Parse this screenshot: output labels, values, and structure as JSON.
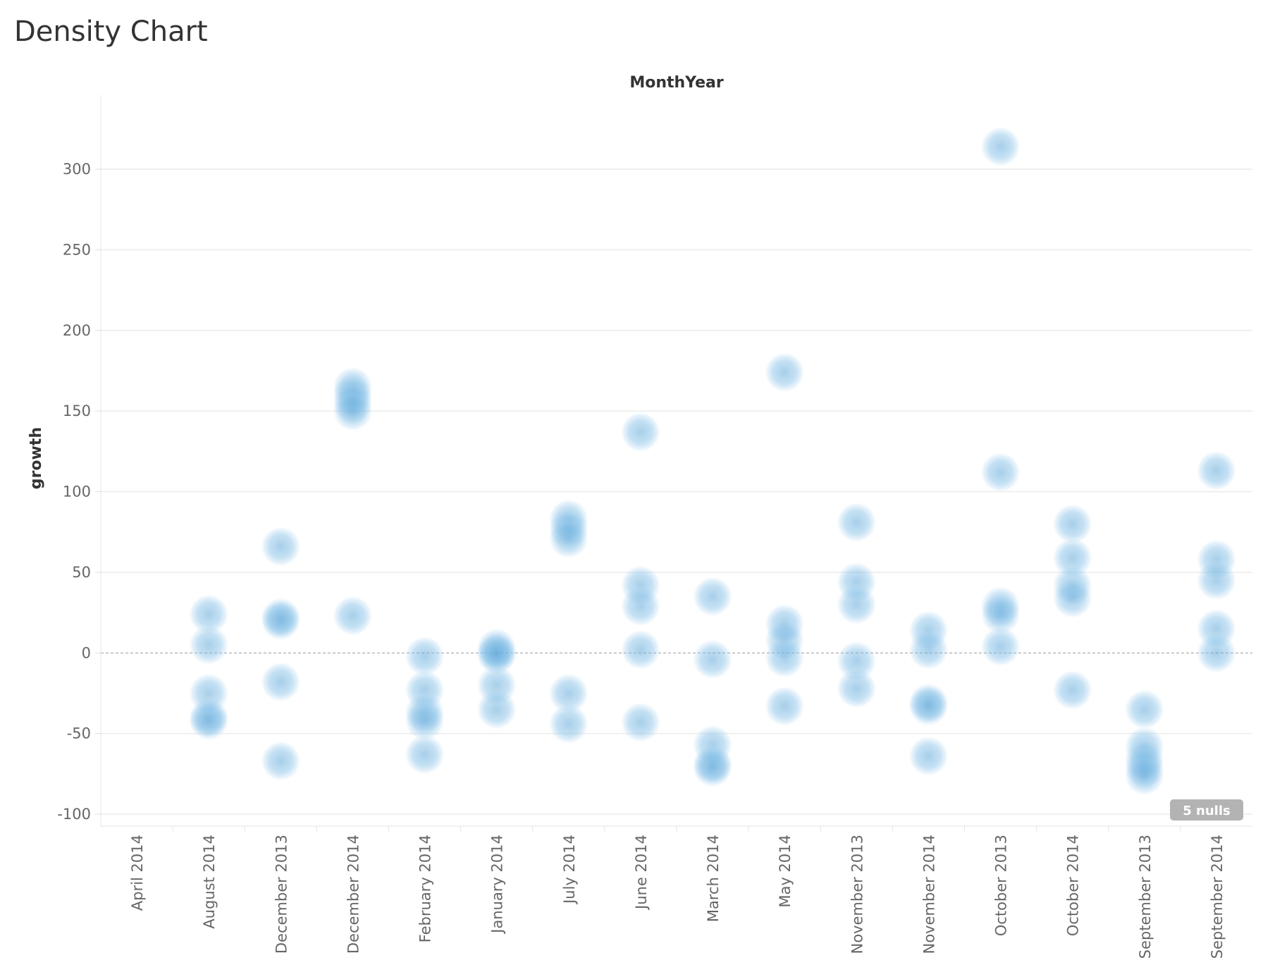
{
  "title": "Density Chart",
  "null_badge": "5 nulls",
  "colors": {
    "point": "#7fbde6",
    "point_dark": "#3a87c2",
    "grid": "#ececec",
    "zero_line": "#999999"
  },
  "chart_data": {
    "type": "scatter",
    "subtype": "density",
    "xlabel": "MonthYear",
    "ylabel": "growth",
    "ylim": [
      -100,
      300
    ],
    "yticks": [
      -100,
      -50,
      0,
      50,
      100,
      150,
      200,
      250,
      300
    ],
    "grid": true,
    "categories": [
      "April 2014",
      "August 2014",
      "December 2013",
      "December 2014",
      "February 2014",
      "January 2014",
      "July 2014",
      "June 2014",
      "March 2014",
      "May 2014",
      "November 2013",
      "November 2014",
      "October 2013",
      "October 2014",
      "September 2013",
      "September 2014"
    ],
    "points": [
      {
        "x": "August 2014",
        "y": 24
      },
      {
        "x": "August 2014",
        "y": 5
      },
      {
        "x": "August 2014",
        "y": -25
      },
      {
        "x": "August 2014",
        "y": -40
      },
      {
        "x": "August 2014",
        "y": -42
      },
      {
        "x": "December 2013",
        "y": 66
      },
      {
        "x": "December 2013",
        "y": 22
      },
      {
        "x": "December 2013",
        "y": 20
      },
      {
        "x": "December 2013",
        "y": -18
      },
      {
        "x": "December 2013",
        "y": -67
      },
      {
        "x": "December 2014",
        "y": 165
      },
      {
        "x": "December 2014",
        "y": 160
      },
      {
        "x": "December 2014",
        "y": 155
      },
      {
        "x": "December 2014",
        "y": 150
      },
      {
        "x": "December 2014",
        "y": 23
      },
      {
        "x": "February 2014",
        "y": -2
      },
      {
        "x": "February 2014",
        "y": -23
      },
      {
        "x": "February 2014",
        "y": -37
      },
      {
        "x": "February 2014",
        "y": -42
      },
      {
        "x": "February 2014",
        "y": -63
      },
      {
        "x": "January 2014",
        "y": 3
      },
      {
        "x": "January 2014",
        "y": 0
      },
      {
        "x": "January 2014",
        "y": -1
      },
      {
        "x": "January 2014",
        "y": -20
      },
      {
        "x": "January 2014",
        "y": -35
      },
      {
        "x": "July 2014",
        "y": 83
      },
      {
        "x": "July 2014",
        "y": 77
      },
      {
        "x": "July 2014",
        "y": 71
      },
      {
        "x": "July 2014",
        "y": -25
      },
      {
        "x": "July 2014",
        "y": -44
      },
      {
        "x": "June 2014",
        "y": 137
      },
      {
        "x": "June 2014",
        "y": 42
      },
      {
        "x": "June 2014",
        "y": 29
      },
      {
        "x": "June 2014",
        "y": 2
      },
      {
        "x": "June 2014",
        "y": -43
      },
      {
        "x": "March 2014",
        "y": 35
      },
      {
        "x": "March 2014",
        "y": -4
      },
      {
        "x": "March 2014",
        "y": -57
      },
      {
        "x": "March 2014",
        "y": -69
      },
      {
        "x": "March 2014",
        "y": -71
      },
      {
        "x": "May 2014",
        "y": 174
      },
      {
        "x": "May 2014",
        "y": 18
      },
      {
        "x": "May 2014",
        "y": 8
      },
      {
        "x": "May 2014",
        "y": -3
      },
      {
        "x": "May 2014",
        "y": -33
      },
      {
        "x": "November 2013",
        "y": 81
      },
      {
        "x": "November 2013",
        "y": 44
      },
      {
        "x": "November 2013",
        "y": 30
      },
      {
        "x": "November 2013",
        "y": -5
      },
      {
        "x": "November 2013",
        "y": -22
      },
      {
        "x": "November 2014",
        "y": 14
      },
      {
        "x": "November 2014",
        "y": 2
      },
      {
        "x": "November 2014",
        "y": -31
      },
      {
        "x": "November 2014",
        "y": -33
      },
      {
        "x": "November 2014",
        "y": -64
      },
      {
        "x": "October 2013",
        "y": 314
      },
      {
        "x": "October 2013",
        "y": 112
      },
      {
        "x": "October 2013",
        "y": 29
      },
      {
        "x": "October 2013",
        "y": 24
      },
      {
        "x": "October 2013",
        "y": 4
      },
      {
        "x": "October 2014",
        "y": 80
      },
      {
        "x": "October 2014",
        "y": 59
      },
      {
        "x": "October 2014",
        "y": 42
      },
      {
        "x": "October 2014",
        "y": 34
      },
      {
        "x": "October 2014",
        "y": -23
      },
      {
        "x": "September 2013",
        "y": -35
      },
      {
        "x": "September 2013",
        "y": -58
      },
      {
        "x": "September 2013",
        "y": -66
      },
      {
        "x": "September 2013",
        "y": -71
      },
      {
        "x": "September 2013",
        "y": -76
      },
      {
        "x": "September 2014",
        "y": 113
      },
      {
        "x": "September 2014",
        "y": 58
      },
      {
        "x": "September 2014",
        "y": 45
      },
      {
        "x": "September 2014",
        "y": 15
      },
      {
        "x": "September 2014",
        "y": 0
      }
    ]
  }
}
